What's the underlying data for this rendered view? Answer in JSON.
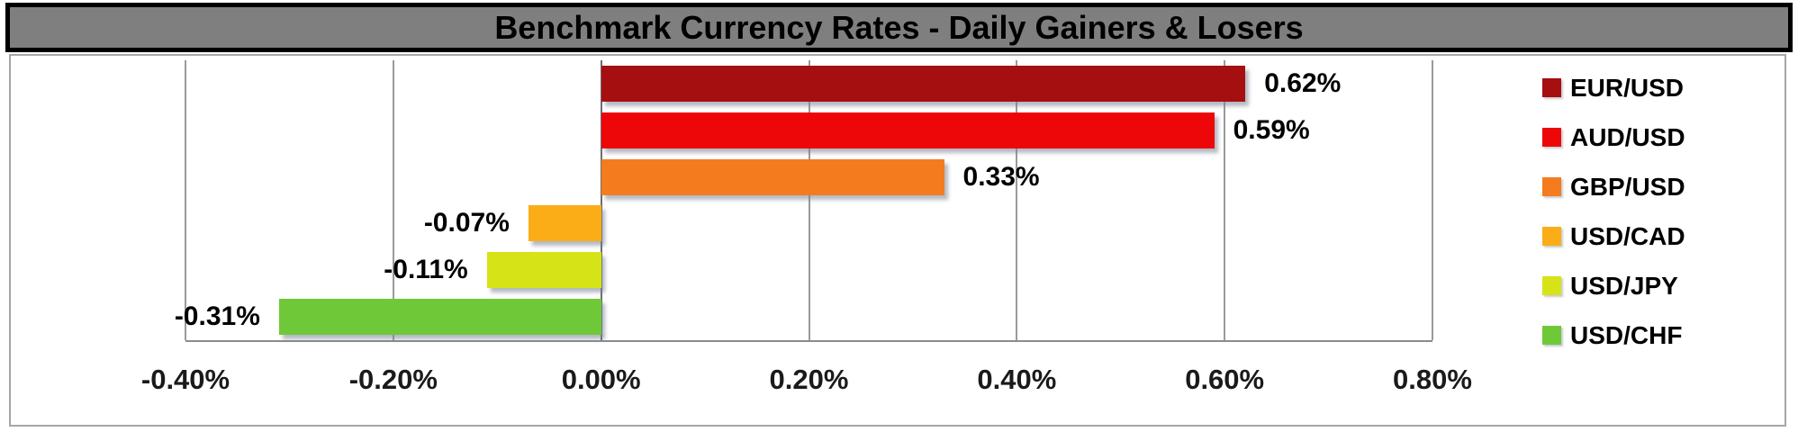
{
  "title": "Benchmark Currency Rates - Daily Gainers & Losers",
  "chart_data": {
    "type": "bar",
    "orientation": "horizontal",
    "title": "Benchmark Currency Rates - Daily Gainers & Losers",
    "categories": [
      "EUR/USD",
      "AUD/USD",
      "GBP/USD",
      "USD/CAD",
      "USD/JPY",
      "USD/CHF"
    ],
    "values": [
      0.62,
      0.59,
      0.33,
      -0.07,
      -0.11,
      -0.31
    ],
    "value_labels": [
      "0.62%",
      "0.59%",
      "0.33%",
      "-0.07%",
      "-0.11%",
      "-0.31%"
    ],
    "series_colors": [
      "#A60F10",
      "#EE0708",
      "#F47C1E",
      "#FBAD18",
      "#D6E317",
      "#6FC838"
    ],
    "x_ticks": [
      "-0.40%",
      "-0.20%",
      "0.00%",
      "0.20%",
      "0.40%",
      "0.60%",
      "0.80%"
    ],
    "x_tick_values": [
      -0.4,
      -0.2,
      0.0,
      0.2,
      0.4,
      0.6,
      0.8
    ],
    "xlim": [
      -0.4,
      0.8
    ],
    "xlabel": "",
    "ylabel": "",
    "grid": true,
    "legend_position": "right",
    "legend": [
      "EUR/USD",
      "AUD/USD",
      "GBP/USD",
      "USD/CAD",
      "USD/JPY",
      "USD/CHF"
    ]
  },
  "colors": {
    "title_bg": "#7F7F7F",
    "title_text": "#000000",
    "outer_border": "#A6A6A6",
    "gridline": "#9A9A9A",
    "zero_line": "#6E6E6E",
    "axis_line": "#8C8C8C"
  }
}
